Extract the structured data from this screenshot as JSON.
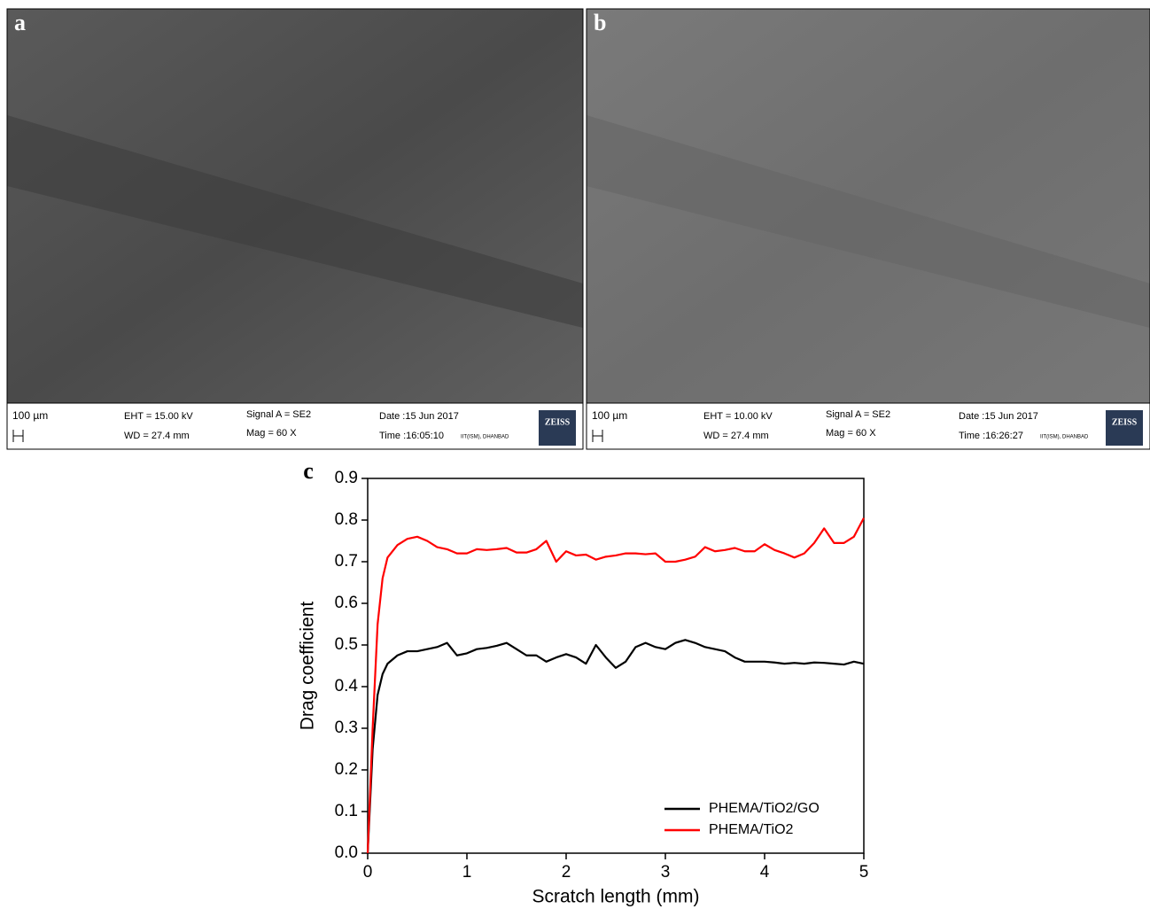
{
  "panels": [
    {
      "label": "a",
      "scale": "100 µm",
      "eht": "EHT = 15.00 kV",
      "wd": "WD = 27.4 mm",
      "signal": "Signal A = SE2",
      "mag": "Mag =    60 X",
      "date": "Date :15 Jun 2017",
      "time": "Time :16:05:10",
      "org": "IIT(ISM), DHANBAD",
      "brand": "ZEISS"
    },
    {
      "label": "b",
      "scale": "100 µm",
      "eht": "EHT = 10.00 kV",
      "wd": "WD = 27.4 mm",
      "signal": "Signal A = SE2",
      "mag": "Mag =    60 X",
      "date": "Date :15 Jun 2017",
      "time": "Time :16:26:27",
      "org": "IIT(ISM), DHANBAD",
      "brand": "ZEISS"
    }
  ],
  "chart_data": {
    "type": "line",
    "panel_label": "c",
    "x_label": "Scratch length (mm)",
    "y_label": "Drag coefficient",
    "xlim": [
      0,
      5
    ],
    "xticks": [
      0,
      1,
      2,
      3,
      4,
      5
    ],
    "ylim": [
      0,
      0.9
    ],
    "yticks": [
      {
        "value": 0,
        "label": "0.0"
      },
      0.1,
      0.2,
      0.3,
      0.4,
      0.5,
      0.6,
      0.7,
      0.8,
      0.9
    ],
    "legend": "lower right",
    "x": [
      0,
      0.05,
      0.1,
      0.15,
      0.2,
      0.3,
      0.4,
      0.5,
      0.6,
      0.7,
      0.8,
      0.9,
      1.0,
      1.1,
      1.2,
      1.3,
      1.4,
      1.5,
      1.6,
      1.7,
      1.8,
      1.9,
      2.0,
      2.1,
      2.2,
      2.3,
      2.4,
      2.5,
      2.6,
      2.7,
      2.8,
      2.9,
      3.0,
      3.1,
      3.2,
      3.3,
      3.4,
      3.5,
      3.6,
      3.7,
      3.8,
      3.9,
      4.0,
      4.1,
      4.2,
      4.3,
      4.4,
      4.5,
      4.6,
      4.7,
      4.8,
      4.9,
      5.0
    ],
    "series": [
      {
        "name": "PHEMA/TiO2/GO",
        "color": "#000000",
        "values": [
          0,
          0.25,
          0.38,
          0.43,
          0.455,
          0.475,
          0.485,
          0.485,
          0.49,
          0.495,
          0.505,
          0.475,
          0.48,
          0.49,
          0.493,
          0.498,
          0.505,
          0.49,
          0.475,
          0.475,
          0.46,
          0.47,
          0.478,
          0.47,
          0.455,
          0.5,
          0.47,
          0.445,
          0.46,
          0.495,
          0.505,
          0.495,
          0.49,
          0.505,
          0.512,
          0.505,
          0.495,
          0.49,
          0.485,
          0.47,
          0.46,
          0.46,
          0.46,
          0.458,
          0.455,
          0.457,
          0.455,
          0.458,
          0.457,
          0.455,
          0.453,
          0.46,
          0.455
        ]
      },
      {
        "name": "PHEMA/TiO2",
        "color": "#ff0000",
        "values": [
          0,
          0.3,
          0.55,
          0.66,
          0.71,
          0.74,
          0.755,
          0.76,
          0.75,
          0.735,
          0.73,
          0.72,
          0.72,
          0.73,
          0.728,
          0.73,
          0.733,
          0.722,
          0.722,
          0.73,
          0.75,
          0.7,
          0.725,
          0.715,
          0.717,
          0.705,
          0.712,
          0.715,
          0.72,
          0.72,
          0.718,
          0.72,
          0.7,
          0.7,
          0.705,
          0.712,
          0.735,
          0.725,
          0.728,
          0.733,
          0.725,
          0.725,
          0.742,
          0.728,
          0.72,
          0.71,
          0.72,
          0.745,
          0.78,
          0.745,
          0.745,
          0.76,
          0.805
        ]
      }
    ]
  }
}
